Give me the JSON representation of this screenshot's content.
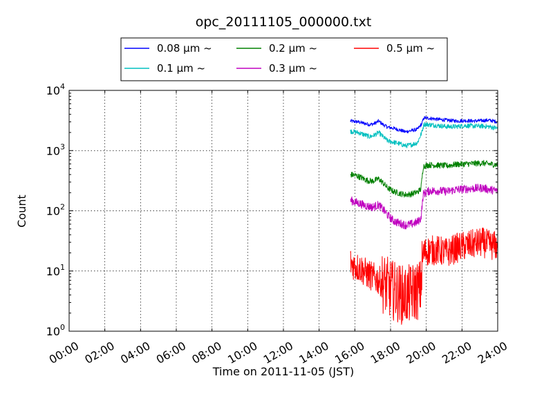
{
  "chart_data": {
    "type": "line",
    "title": "opc_20111105_000000.txt",
    "xlabel": "Time on 2011-11-05 (JST)",
    "ylabel": "Count",
    "x_ticks": [
      "00:00",
      "02:00",
      "04:00",
      "06:00",
      "08:00",
      "10:00",
      "12:00",
      "14:00",
      "16:00",
      "18:00",
      "20:00",
      "22:00",
      "24:00"
    ],
    "xlim": [
      "00:00",
      "24:00"
    ],
    "y_scale": "log",
    "ylim": [
      1,
      10000
    ],
    "y_ticks": [
      {
        "base": "10",
        "exp": "0",
        "value": 1
      },
      {
        "base": "10",
        "exp": "1",
        "value": 10
      },
      {
        "base": "10",
        "exp": "2",
        "value": 100
      },
      {
        "base": "10",
        "exp": "3",
        "value": 1000
      },
      {
        "base": "10",
        "exp": "4",
        "value": 10000
      }
    ],
    "grid": true,
    "legend_position": "top, above plot",
    "x_tick_label_rotation": "rotated",
    "series": [
      {
        "name": "0.08 μm ~",
        "color": "#0000ff",
        "points": [
          [
            "15:45",
            3100
          ],
          [
            "16:10",
            3000
          ],
          [
            "16:30",
            2850
          ],
          [
            "16:50",
            2700
          ],
          [
            "17:05",
            2800
          ],
          [
            "17:20",
            3100
          ],
          [
            "17:35",
            2700
          ],
          [
            "17:50",
            2450
          ],
          [
            "18:10",
            2350
          ],
          [
            "18:30",
            2200
          ],
          [
            "18:50",
            2050
          ],
          [
            "19:10",
            2150
          ],
          [
            "19:30",
            2250
          ],
          [
            "19:45",
            2800
          ],
          [
            "19:52",
            3500
          ],
          [
            "20:10",
            3450
          ],
          [
            "20:40",
            3300
          ],
          [
            "21:10",
            3200
          ],
          [
            "21:40",
            3100
          ],
          [
            "22:10",
            3150
          ],
          [
            "22:40",
            3100
          ],
          [
            "23:10",
            3150
          ],
          [
            "23:30",
            3200
          ],
          [
            "24:00",
            3000
          ]
        ]
      },
      {
        "name": "0.1 μm ~",
        "color": "#00bfbf",
        "points": [
          [
            "15:45",
            2100
          ],
          [
            "16:10",
            2000
          ],
          [
            "16:30",
            1850
          ],
          [
            "16:50",
            1700
          ],
          [
            "17:05",
            1800
          ],
          [
            "17:20",
            2000
          ],
          [
            "17:35",
            1700
          ],
          [
            "17:50",
            1450
          ],
          [
            "18:10",
            1380
          ],
          [
            "18:30",
            1300
          ],
          [
            "18:50",
            1200
          ],
          [
            "19:10",
            1250
          ],
          [
            "19:30",
            1350
          ],
          [
            "19:45",
            2000
          ],
          [
            "19:52",
            2750
          ],
          [
            "20:10",
            2700
          ],
          [
            "20:40",
            2600
          ],
          [
            "21:10",
            2500
          ],
          [
            "21:40",
            2500
          ],
          [
            "22:10",
            2600
          ],
          [
            "22:40",
            2550
          ],
          [
            "23:10",
            2550
          ],
          [
            "23:30",
            2500
          ],
          [
            "24:00",
            2350
          ]
        ]
      },
      {
        "name": "0.2 μm ~",
        "color": "#008000",
        "points": [
          [
            "15:45",
            400
          ],
          [
            "16:00",
            390
          ],
          [
            "16:20",
            360
          ],
          [
            "16:40",
            320
          ],
          [
            "17:00",
            310
          ],
          [
            "17:20",
            340
          ],
          [
            "17:35",
            290
          ],
          [
            "17:50",
            240
          ],
          [
            "18:10",
            210
          ],
          [
            "18:30",
            195
          ],
          [
            "18:50",
            185
          ],
          [
            "19:10",
            190
          ],
          [
            "19:30",
            205
          ],
          [
            "19:42",
            230
          ],
          [
            "19:50",
            550
          ],
          [
            "20:10",
            580
          ],
          [
            "20:40",
            570
          ],
          [
            "21:10",
            560
          ],
          [
            "21:40",
            590
          ],
          [
            "22:10",
            600
          ],
          [
            "22:40",
            610
          ],
          [
            "23:10",
            620
          ],
          [
            "23:30",
            600
          ],
          [
            "24:00",
            580
          ]
        ]
      },
      {
        "name": "0.3 μm ~",
        "color": "#bf00bf",
        "points": [
          [
            "15:45",
            150
          ],
          [
            "16:00",
            140
          ],
          [
            "16:20",
            130
          ],
          [
            "16:40",
            120
          ],
          [
            "17:00",
            115
          ],
          [
            "17:20",
            125
          ],
          [
            "17:35",
            105
          ],
          [
            "17:50",
            85
          ],
          [
            "18:10",
            68
          ],
          [
            "18:30",
            62
          ],
          [
            "18:50",
            58
          ],
          [
            "19:10",
            60
          ],
          [
            "19:30",
            65
          ],
          [
            "19:42",
            75
          ],
          [
            "19:50",
            190
          ],
          [
            "20:10",
            215
          ],
          [
            "20:40",
            215
          ],
          [
            "21:10",
            210
          ],
          [
            "21:40",
            225
          ],
          [
            "22:10",
            230
          ],
          [
            "22:40",
            235
          ],
          [
            "23:10",
            240
          ],
          [
            "23:30",
            225
          ],
          [
            "24:00",
            215
          ]
        ]
      },
      {
        "name": "0.5 μm ~",
        "color": "#ff0000",
        "points": [
          [
            "15:45",
            14
          ],
          [
            "16:00",
            12
          ],
          [
            "16:20",
            11
          ],
          [
            "16:40",
            9
          ],
          [
            "17:00",
            8
          ],
          [
            "17:20",
            7
          ],
          [
            "17:40",
            6
          ],
          [
            "18:00",
            5
          ],
          [
            "18:20",
            4.5
          ],
          [
            "18:40",
            4
          ],
          [
            "19:00",
            4
          ],
          [
            "19:20",
            4.5
          ],
          [
            "19:40",
            5
          ],
          [
            "19:50",
            20
          ],
          [
            "20:10",
            22
          ],
          [
            "20:40",
            22
          ],
          [
            "21:10",
            20
          ],
          [
            "21:40",
            24
          ],
          [
            "22:10",
            26
          ],
          [
            "22:40",
            28
          ],
          [
            "23:10",
            30
          ],
          [
            "23:30",
            27
          ],
          [
            "24:00",
            26
          ]
        ]
      }
    ]
  }
}
